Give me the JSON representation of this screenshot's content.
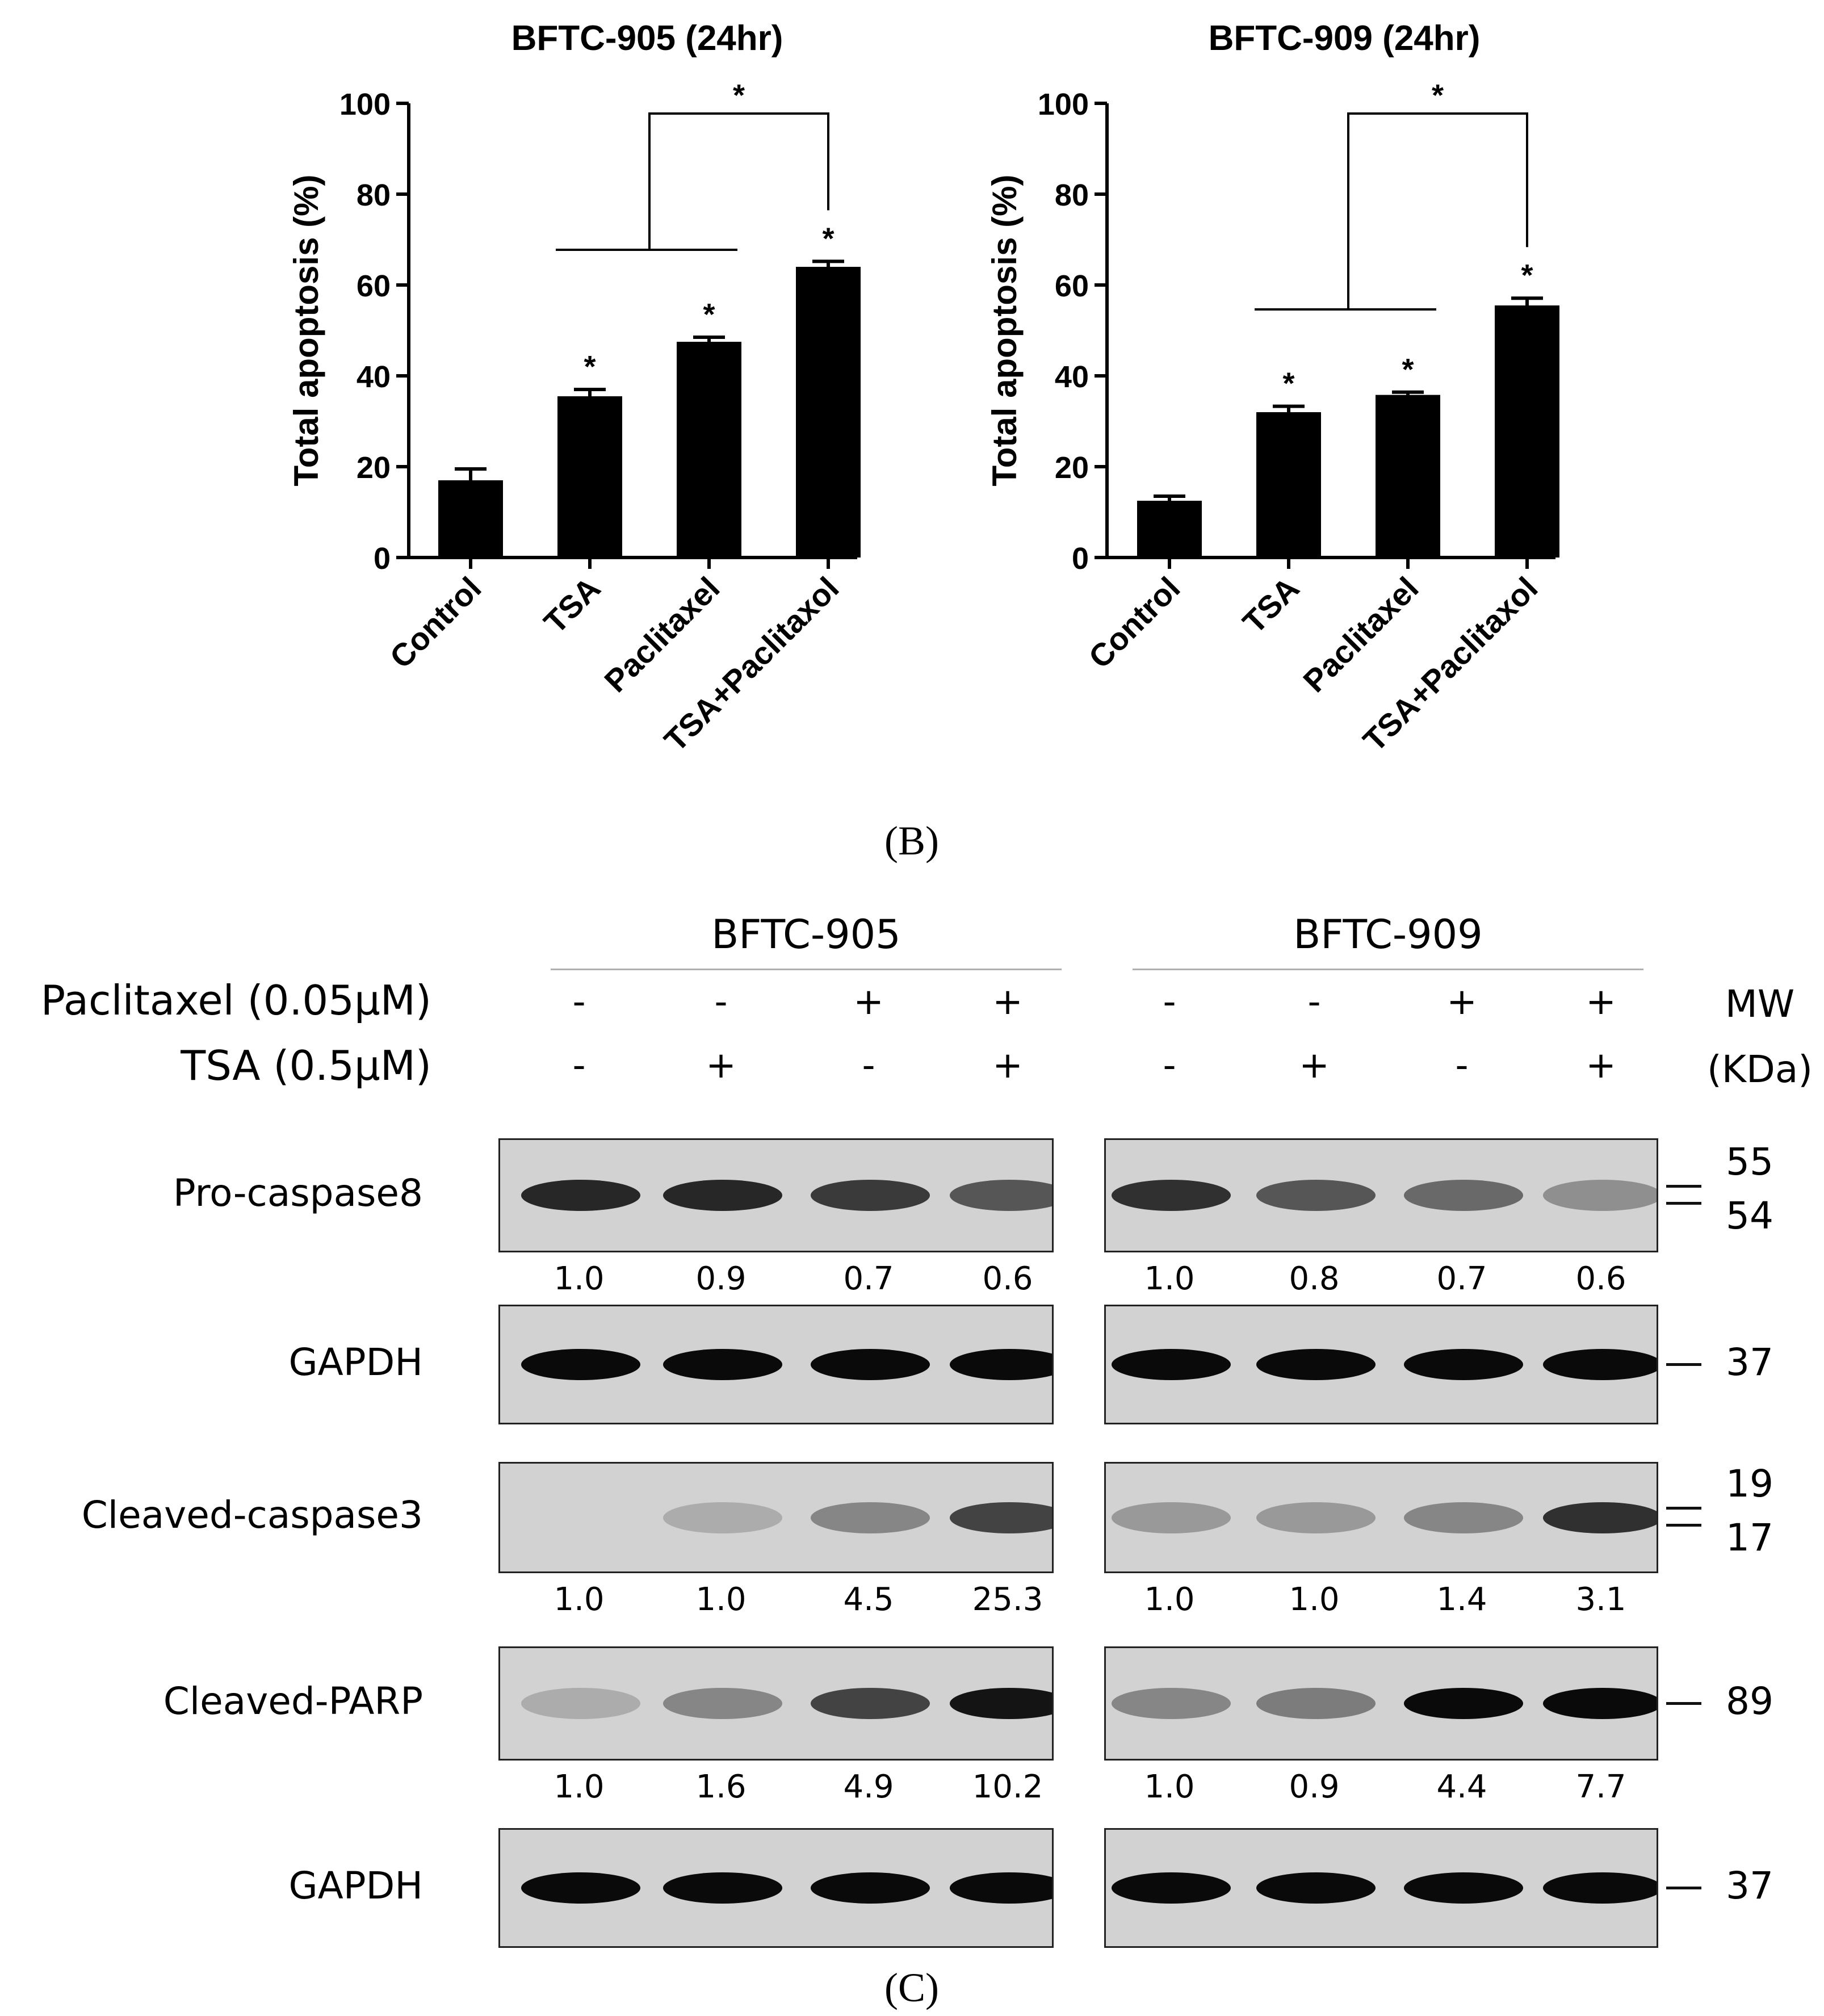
{
  "chart_data": [
    {
      "type": "bar",
      "title": "BFTC-905 (24hr)",
      "xlabel": "",
      "ylabel": "Total apoptosis (%)",
      "ylim": [
        0,
        100
      ],
      "yticks": [
        "0",
        "20",
        "40",
        "60",
        "80",
        "100"
      ],
      "categories": [
        "Control",
        "TSA",
        "Paclitaxel",
        "TSA+Paclitaxol"
      ],
      "values": [
        17,
        35.5,
        47.5,
        64
      ],
      "errors": [
        2.5,
        1.5,
        1.0,
        1.2
      ],
      "significance": [
        "",
        "*",
        "*",
        "*"
      ],
      "bracket_label": "*",
      "bar_color": "#000000"
    },
    {
      "type": "bar",
      "title": "BFTC-909 (24hr)",
      "xlabel": "",
      "ylabel": "Total apoptosis (%)",
      "ylim": [
        0,
        100
      ],
      "yticks": [
        "0",
        "20",
        "40",
        "60",
        "80",
        "100"
      ],
      "categories": [
        "Control",
        "TSA",
        "Paclitaxel",
        "TSA+Paclitaxol"
      ],
      "values": [
        12.5,
        32,
        35.8,
        55.5
      ],
      "errors": [
        1.0,
        1.3,
        0.6,
        1.6
      ],
      "significance": [
        "",
        "*",
        "*",
        "*"
      ],
      "bracket_label": "*",
      "bar_color": "#000000"
    }
  ],
  "panel_b_label": "(B)",
  "panel_c_label": "(C)",
  "western": {
    "cell_lines": [
      "BFTC-905",
      "BFTC-909"
    ],
    "treatments": [
      {
        "label": "Paclitaxel (0.05μM)",
        "signs": [
          "-",
          "-",
          "+",
          "+"
        ]
      },
      {
        "label": "TSA (0.5μM)",
        "signs": [
          "-",
          "+",
          "-",
          "+"
        ]
      }
    ],
    "mw_header": [
      "MW",
      "(KDa)"
    ],
    "rows": [
      {
        "protein": "Pro-caspase8",
        "mw": [
          "55",
          "54"
        ],
        "quant": [
          [
            "1.0",
            "0.9",
            "0.7",
            "0.6"
          ],
          [
            "1.0",
            "0.8",
            "0.7",
            "0.6"
          ]
        ],
        "intensity": [
          [
            0.85,
            0.85,
            0.75,
            0.6
          ],
          [
            0.8,
            0.6,
            0.5,
            0.3
          ]
        ]
      },
      {
        "protein": "GAPDH",
        "mw": [
          "37"
        ],
        "quant": null,
        "intensity": [
          [
            1,
            1,
            1,
            1
          ],
          [
            1,
            1,
            1,
            1
          ]
        ]
      },
      {
        "protein": "Cleaved-caspase3",
        "mw": [
          "19",
          "17"
        ],
        "quant": [
          [
            "1.0",
            "1.0",
            "4.5",
            "25.3"
          ],
          [
            "1.0",
            "1.0",
            "1.4",
            "3.1"
          ]
        ],
        "intensity": [
          [
            0.0,
            0.15,
            0.35,
            0.7
          ],
          [
            0.25,
            0.25,
            0.35,
            0.8
          ]
        ]
      },
      {
        "protein": "Cleaved-PARP",
        "mw": [
          "89"
        ],
        "quant": [
          [
            "1.0",
            "1.6",
            "4.9",
            "10.2"
          ],
          [
            "1.0",
            "0.9",
            "4.4",
            "7.7"
          ]
        ],
        "intensity": [
          [
            0.15,
            0.35,
            0.7,
            0.95
          ],
          [
            0.35,
            0.4,
            1,
            1
          ]
        ]
      },
      {
        "protein": "GAPDH",
        "mw": [
          "37"
        ],
        "quant": null,
        "intensity": [
          [
            1,
            1,
            1,
            1
          ],
          [
            1,
            1,
            1,
            1
          ]
        ]
      }
    ]
  }
}
